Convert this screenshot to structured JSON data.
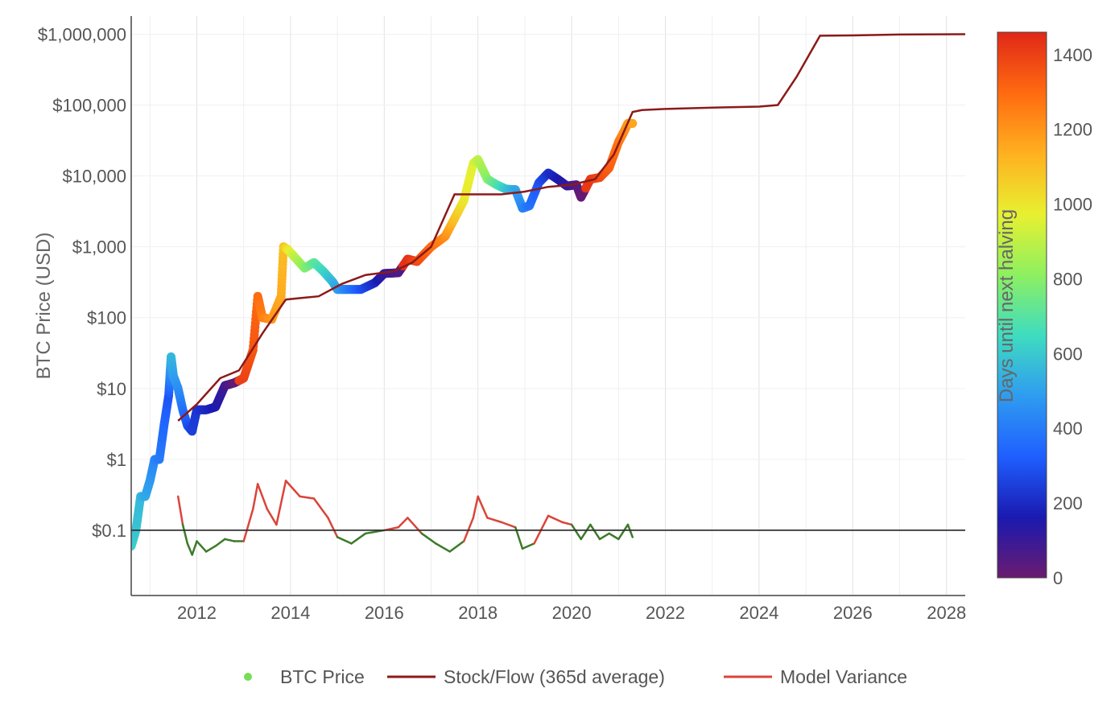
{
  "chart_data": {
    "type": "scatter",
    "title": "",
    "xlabel": "",
    "ylabel": "BTC Price (USD)",
    "y_scale": "log",
    "ylim": [
      0.012,
      1800000
    ],
    "xlim": [
      2010.6,
      2028.4
    ],
    "grid": true,
    "legend_position": "bottom",
    "x_ticks": [
      2012,
      2014,
      2016,
      2018,
      2020,
      2022,
      2024,
      2026,
      2028
    ],
    "x_tick_labels": [
      "2012",
      "2014",
      "2016",
      "2018",
      "2020",
      "2022",
      "2024",
      "2026",
      "2028"
    ],
    "y_ticks": [
      0.1,
      1,
      10,
      100,
      1000,
      10000,
      100000,
      1000000
    ],
    "y_tick_labels": [
      "$0.1",
      "$1",
      "$10",
      "$100",
      "$1,000",
      "$10,000",
      "$100,000",
      "$1,000,000"
    ],
    "reference_line": {
      "y": 0.1,
      "color": "#333333"
    },
    "colorbar": {
      "title": "Days until next halving",
      "min": 0,
      "max": 1460,
      "ticks": [
        0,
        200,
        400,
        600,
        800,
        1000,
        1200,
        1400
      ],
      "tick_labels": [
        "0",
        "200",
        "400",
        "600",
        "800",
        "1000",
        "1200",
        "1400"
      ],
      "colorscale": [
        "#6a1b6f",
        "#1a1ab0",
        "#1f5fff",
        "#2f9cf0",
        "#3fdcc0",
        "#8ef060",
        "#e8f030",
        "#ffb020",
        "#ff6a10",
        "#e02818"
      ]
    },
    "series": [
      {
        "name": "BTC Price",
        "kind": "scatter",
        "color_by": "days_until_next_halving",
        "legend_color": "#77dd55",
        "x": [
          2010.6,
          2010.7,
          2010.8,
          2010.9,
          2011.0,
          2011.1,
          2011.2,
          2011.3,
          2011.4,
          2011.45,
          2011.5,
          2011.6,
          2011.7,
          2011.8,
          2011.9,
          2012.0,
          2012.2,
          2012.4,
          2012.6,
          2012.8,
          2013.0,
          2013.2,
          2013.3,
          2013.4,
          2013.6,
          2013.8,
          2013.85,
          2013.95,
          2014.1,
          2014.3,
          2014.5,
          2014.7,
          2014.9,
          2015.0,
          2015.2,
          2015.5,
          2015.8,
          2016.0,
          2016.3,
          2016.5,
          2016.7,
          2017.0,
          2017.3,
          2017.5,
          2017.7,
          2017.9,
          2018.0,
          2018.2,
          2018.4,
          2018.6,
          2018.8,
          2018.95,
          2019.1,
          2019.3,
          2019.5,
          2019.7,
          2019.9,
          2020.1,
          2020.2,
          2020.4,
          2020.6,
          2020.8,
          2021.0,
          2021.1,
          2021.2,
          2021.3
        ],
        "y": [
          0.06,
          0.1,
          0.3,
          0.3,
          0.5,
          1,
          1,
          3,
          8,
          28,
          15,
          10,
          5,
          3,
          2.5,
          5,
          5,
          5.5,
          11,
          12,
          14,
          35,
          200,
          100,
          95,
          200,
          1000,
          900,
          700,
          500,
          600,
          450,
          320,
          250,
          250,
          250,
          310,
          420,
          430,
          670,
          620,
          1000,
          1400,
          2500,
          4500,
          15000,
          17000,
          9000,
          7500,
          6500,
          6400,
          3500,
          3800,
          8000,
          11000,
          9000,
          7200,
          7500,
          5000,
          9000,
          9500,
          13000,
          30000,
          40000,
          55000,
          55000
        ],
        "days": [
          620,
          590,
          560,
          520,
          480,
          430,
          400,
          350,
          300,
          560,
          500,
          460,
          380,
          300,
          250,
          230,
          200,
          160,
          90,
          20,
          1400,
          1350,
          1300,
          1250,
          1200,
          1150,
          1100,
          1000,
          900,
          800,
          720,
          640,
          560,
          500,
          420,
          300,
          200,
          110,
          60,
          1440,
          1380,
          1300,
          1220,
          1100,
          1000,
          960,
          900,
          800,
          700,
          600,
          520,
          430,
          380,
          300,
          220,
          170,
          120,
          60,
          10,
          1420,
          1380,
          1330,
          1280,
          1230,
          1200,
          1160
        ]
      },
      {
        "name": "Stock/Flow (365d average)",
        "kind": "line",
        "color": "#8b1a1a",
        "x": [
          2011.6,
          2012.0,
          2012.5,
          2012.9,
          2013.4,
          2013.9,
          2014.6,
          2015.1,
          2015.6,
          2016.2,
          2016.6,
          2017.0,
          2017.5,
          2018.0,
          2018.5,
          2019.0,
          2019.5,
          2020.0,
          2020.5,
          2020.9,
          2021.3,
          2021.5,
          2022.0,
          2023.0,
          2024.0,
          2024.4,
          2024.8,
          2025.3,
          2026.0,
          2027.0,
          2028.4
        ],
        "y": [
          3.5,
          6,
          14,
          18,
          60,
          180,
          200,
          300,
          400,
          450,
          600,
          1000,
          5500,
          5500,
          5500,
          6000,
          7000,
          7500,
          9000,
          20000,
          80000,
          85000,
          88000,
          92000,
          95000,
          100000,
          250000,
          950000,
          960000,
          990000,
          1000000
        ]
      },
      {
        "name": "Model Variance",
        "kind": "variance_line",
        "color_above": "#d9453a",
        "color_below": "#3d7a2a",
        "baseline": 0.1,
        "x": [
          2011.6,
          2011.7,
          2011.8,
          2011.9,
          2012.0,
          2012.2,
          2012.4,
          2012.6,
          2012.8,
          2013.0,
          2013.2,
          2013.3,
          2013.5,
          2013.7,
          2013.9,
          2014.2,
          2014.5,
          2014.8,
          2015.0,
          2015.3,
          2015.6,
          2016.0,
          2016.3,
          2016.5,
          2016.8,
          2017.1,
          2017.4,
          2017.7,
          2017.9,
          2018.0,
          2018.2,
          2018.5,
          2018.8,
          2018.95,
          2019.2,
          2019.5,
          2019.8,
          2020.0,
          2020.2,
          2020.4,
          2020.6,
          2020.8,
          2021.0,
          2021.2,
          2021.3
        ],
        "y": [
          0.3,
          0.12,
          0.065,
          0.045,
          0.07,
          0.05,
          0.06,
          0.075,
          0.07,
          0.07,
          0.2,
          0.45,
          0.2,
          0.12,
          0.5,
          0.3,
          0.28,
          0.15,
          0.08,
          0.065,
          0.09,
          0.1,
          0.11,
          0.15,
          0.09,
          0.065,
          0.05,
          0.07,
          0.15,
          0.3,
          0.15,
          0.13,
          0.11,
          0.055,
          0.065,
          0.16,
          0.13,
          0.12,
          0.075,
          0.12,
          0.075,
          0.09,
          0.075,
          0.12,
          0.08
        ]
      }
    ]
  }
}
